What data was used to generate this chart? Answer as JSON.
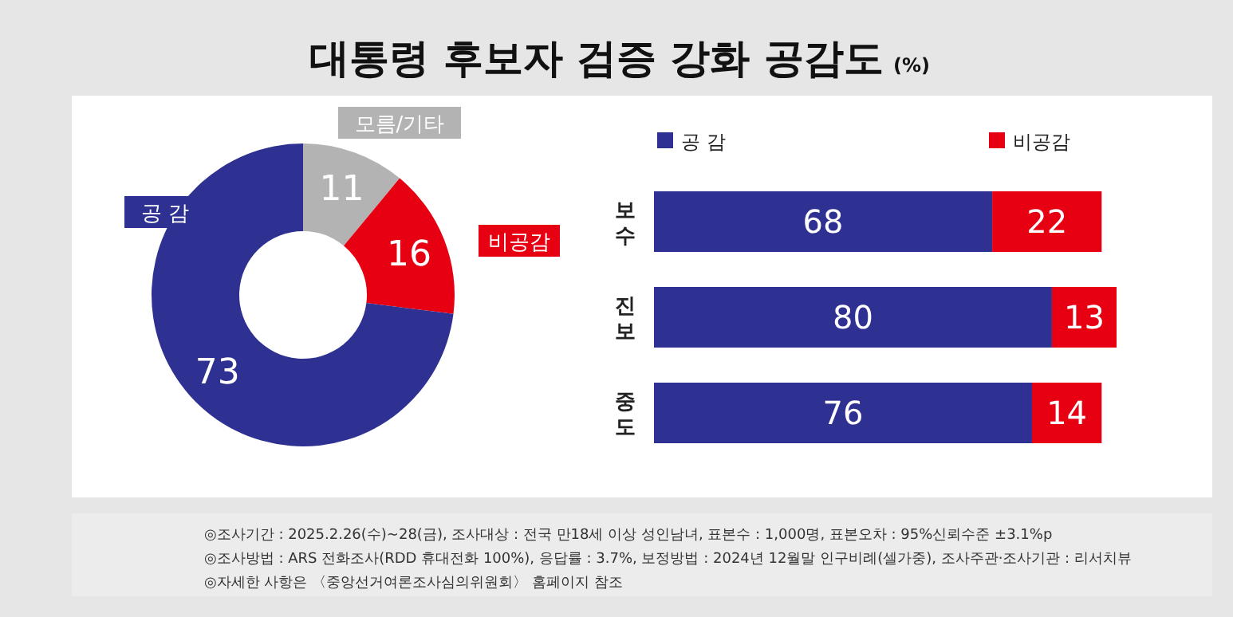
{
  "chart_data": [
    {
      "type": "donut",
      "title": "대통령 후보자 검증 강화 공감도",
      "categories": [
        "모름/기타",
        "비공감",
        "공 감"
      ],
      "values": [
        11,
        16,
        73
      ],
      "colors": [
        "#b3b3b3",
        "#e60012",
        "#2e3192"
      ],
      "data_labels": true,
      "annotations": [
        "◎조사기간 : 2025.2.26(수)~28(금), 조사대상 : 전국 만18세 이상 성인남녀, 표본수 : 1,000명, 표본오차 : 95%신뢰수준 ±3.1%p",
        "◎조사방법 : ARS 전화조사(RDD 휴대전화 100%), 응답률 : 3.7%, 보정방법 : 2024년 12월말 인구비례(셀가중), 조사주관·조사기관 : 리서치뷰",
        "◎자세한 사항은 〈중앙선거여론조사심의위원회〉 홈페이지 참조"
      ]
    },
    {
      "type": "bar",
      "orientation": "horizontal",
      "stacked": true,
      "data_labels": true,
      "legend": "top left",
      "subtitle": "(%)",
      "categories": [
        "보수",
        "진보",
        "중도"
      ],
      "series": [
        {
          "name": "공 감",
          "color": "#2e3192",
          "values": [
            68,
            80,
            76
          ]
        },
        {
          "name": "비공감",
          "color": "#e60012",
          "values": [
            22,
            13,
            14
          ]
        }
      ]
    }
  ]
}
